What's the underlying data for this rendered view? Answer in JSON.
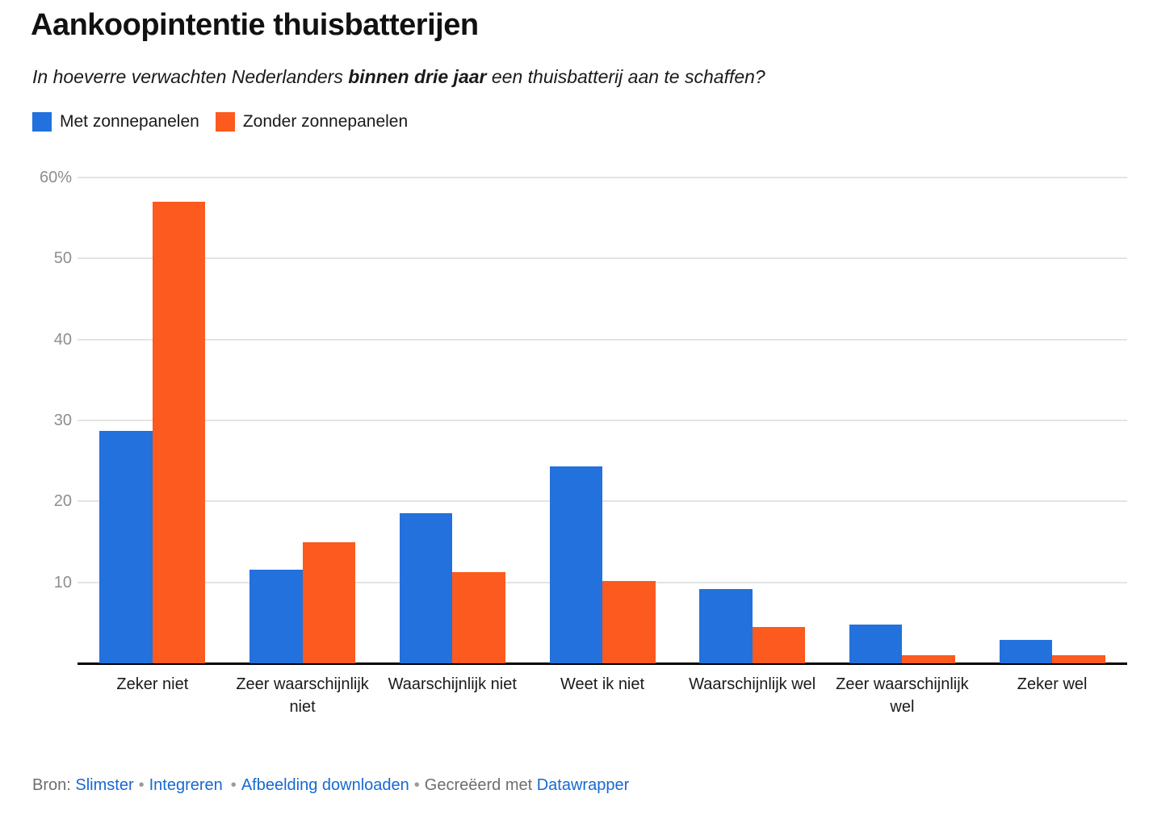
{
  "header": {
    "title": "Aankoopintentie thuisbatterijen",
    "subtitle_prefix": "In hoeverre verwachten Nederlanders ",
    "subtitle_bold": "binnen drie jaar",
    "subtitle_suffix": " een thuisbatterij aan te schaffen?"
  },
  "legend": [
    {
      "label": "Met zonnepanelen",
      "color": "#2271DC"
    },
    {
      "label": "Zonder zonnepanelen",
      "color": "#FC5A1E"
    }
  ],
  "chart_data": {
    "type": "bar",
    "title": "Aankoopintentie thuisbatterijen",
    "subtitle": "In hoeverre verwachten Nederlanders binnen drie jaar een thuisbatterij aan te schaffen?",
    "categories": [
      "Zeker niet",
      "Zeer waarschijnlijk niet",
      "Waarschijnlijk niet",
      "Weet ik niet",
      "Waarschijnlijk wel",
      "Zeer waarschijnlijk wel",
      "Zeker wel"
    ],
    "series": [
      {
        "name": "Met zonnepanelen",
        "color": "#2271DC",
        "values": [
          28.7,
          11.6,
          18.5,
          24.3,
          9.2,
          4.8,
          2.9
        ]
      },
      {
        "name": "Zonder zonnepanelen",
        "color": "#FC5A1E",
        "values": [
          57.0,
          15.0,
          11.3,
          10.2,
          4.5,
          1.0,
          1.0
        ]
      }
    ],
    "unit": "%",
    "ylim": [
      0,
      60
    ],
    "yticks": [
      {
        "value": 60,
        "label": "60%"
      },
      {
        "value": 50,
        "label": "50"
      },
      {
        "value": 40,
        "label": "40"
      },
      {
        "value": 30,
        "label": "30"
      },
      {
        "value": 20,
        "label": "20"
      },
      {
        "value": 10,
        "label": "10"
      }
    ],
    "grid": true,
    "legend_position": "top-left",
    "colors": {
      "gridline": "#e4e4e4",
      "axis_baseline": "#000000",
      "tick_label": "#8e8e8e",
      "category_label": "#1a1a1a"
    }
  },
  "footer": {
    "source_label": "Bron:",
    "source_link": "Slimster",
    "embed_link": "Integreren",
    "download_link": "Afbeelding downloaden",
    "credit_text": "Gecreëerd met",
    "credit_link": "Datawrapper",
    "separator": "•",
    "link_color": "#1769D2"
  }
}
